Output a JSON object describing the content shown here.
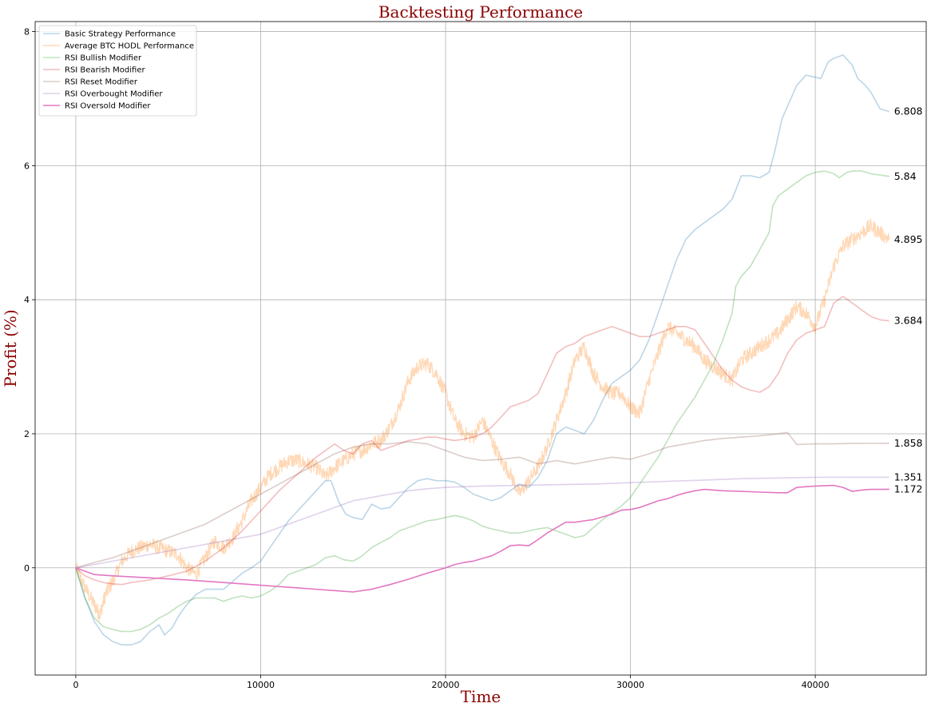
{
  "chart_data": {
    "type": "line",
    "title": "Backtesting Performance",
    "xlabel": "Time",
    "ylabel": "Profit (%)",
    "xlim": [
      -2200,
      46000
    ],
    "ylim": [
      -1.6,
      8.15
    ],
    "xticks": [
      0,
      10000,
      20000,
      30000,
      40000
    ],
    "yticks": [
      0,
      2,
      4,
      6,
      8
    ],
    "grid": true,
    "legend_position": "top-left",
    "series": [
      {
        "name": "Basic Strategy Performance",
        "color": "#1f77b4",
        "opacity": 0.3,
        "noise": 0,
        "x": [
          0,
          500,
          1000,
          1500,
          2000,
          2500,
          3000,
          3500,
          4000,
          4500,
          4800,
          5200,
          5600,
          6000,
          6500,
          7000,
          7500,
          8000,
          8500,
          9000,
          9500,
          10000,
          10500,
          11000,
          11500,
          12000,
          12500,
          13000,
          13500,
          13800,
          14200,
          14600,
          15000,
          15500,
          16000,
          16500,
          17000,
          17500,
          18000,
          18500,
          19000,
          19500,
          20000,
          20500,
          21000,
          21500,
          22000,
          22500,
          23000,
          23500,
          24000,
          24500,
          25000,
          25500,
          26000,
          26500,
          27000,
          27500,
          28000,
          28500,
          29000,
          29500,
          30000,
          30500,
          31000,
          31500,
          32000,
          32500,
          33000,
          33500,
          34000,
          34500,
          35000,
          35500,
          36000,
          36500,
          37000,
          37500,
          37800,
          38200,
          38600,
          39000,
          39500,
          40000,
          40300,
          40700,
          41000,
          41500,
          42000,
          42300,
          42700,
          43000,
          43500,
          44000
        ],
        "y": [
          0,
          -0.45,
          -0.8,
          -1.0,
          -1.1,
          -1.15,
          -1.15,
          -1.1,
          -0.95,
          -0.85,
          -1.0,
          -0.9,
          -0.7,
          -0.55,
          -0.4,
          -0.32,
          -0.32,
          -0.32,
          -0.2,
          -0.08,
          0.0,
          0.1,
          0.3,
          0.5,
          0.7,
          0.85,
          1.0,
          1.15,
          1.3,
          1.3,
          1.0,
          0.8,
          0.75,
          0.72,
          0.95,
          0.88,
          0.9,
          1.05,
          1.2,
          1.3,
          1.33,
          1.3,
          1.3,
          1.28,
          1.2,
          1.1,
          1.05,
          1.0,
          1.05,
          1.15,
          1.25,
          1.2,
          1.35,
          1.6,
          2.0,
          2.1,
          2.05,
          2.0,
          2.2,
          2.5,
          2.75,
          2.85,
          2.95,
          3.1,
          3.4,
          3.8,
          4.2,
          4.6,
          4.9,
          5.05,
          5.15,
          5.25,
          5.35,
          5.5,
          5.85,
          5.85,
          5.82,
          5.9,
          6.2,
          6.7,
          6.95,
          7.2,
          7.35,
          7.32,
          7.3,
          7.55,
          7.6,
          7.65,
          7.5,
          7.3,
          7.2,
          7.1,
          6.85,
          6.808
        ]
      },
      {
        "name": "Average BTC HODL Performance",
        "color": "#ff7f0e",
        "opacity": 0.3,
        "noise": 1,
        "x": [
          0,
          500,
          1000,
          1300,
          1600,
          2000,
          2500,
          3000,
          3500,
          4000,
          4500,
          5000,
          5500,
          6000,
          6500,
          7000,
          7500,
          8000,
          8500,
          9000,
          9500,
          10000,
          10500,
          11000,
          11500,
          12000,
          12500,
          13000,
          13500,
          14000,
          14500,
          15000,
          15500,
          16000,
          16500,
          17000,
          17500,
          18000,
          18500,
          19000,
          19500,
          20000,
          20500,
          21000,
          21500,
          22000,
          22500,
          23000,
          23500,
          24000,
          24500,
          25000,
          25500,
          26000,
          26500,
          27000,
          27500,
          28000,
          28500,
          29000,
          29500,
          30000,
          30500,
          31000,
          31500,
          32000,
          32500,
          33000,
          33500,
          34000,
          34500,
          35000,
          35500,
          36000,
          36500,
          37000,
          37500,
          38000,
          38500,
          39000,
          39500,
          40000,
          40500,
          41000,
          41500,
          42000,
          42500,
          43000,
          43500,
          44000
        ],
        "y": [
          0,
          -0.3,
          -0.55,
          -0.7,
          -0.4,
          -0.2,
          0.1,
          0.25,
          0.3,
          0.35,
          0.3,
          0.25,
          0.2,
          0.0,
          -0.1,
          0.15,
          0.4,
          0.3,
          0.45,
          0.7,
          1.0,
          1.2,
          1.4,
          1.5,
          1.6,
          1.6,
          1.55,
          1.5,
          1.35,
          1.5,
          1.6,
          1.7,
          1.75,
          1.85,
          1.9,
          2.1,
          2.4,
          2.8,
          3.0,
          3.05,
          2.9,
          2.6,
          2.2,
          2.0,
          1.95,
          2.2,
          1.9,
          1.6,
          1.4,
          1.1,
          1.3,
          1.5,
          1.8,
          2.2,
          2.6,
          3.1,
          3.3,
          2.9,
          2.7,
          2.6,
          2.6,
          2.4,
          2.3,
          2.8,
          3.2,
          3.6,
          3.5,
          3.4,
          3.3,
          3.1,
          3.0,
          2.9,
          2.8,
          3.1,
          3.2,
          3.3,
          3.4,
          3.5,
          3.7,
          3.9,
          3.8,
          3.6,
          4.0,
          4.5,
          4.8,
          4.9,
          5.0,
          5.1,
          5.0,
          4.895
        ]
      },
      {
        "name": "RSI Bullish Modifier",
        "color": "#2ca02c",
        "opacity": 0.3,
        "noise": 0,
        "x": [
          0,
          500,
          1000,
          1500,
          2000,
          2500,
          3000,
          3500,
          4000,
          4500,
          5000,
          5500,
          6000,
          6500,
          7000,
          7500,
          8000,
          8500,
          9000,
          9500,
          10000,
          10500,
          11000,
          11500,
          12000,
          12500,
          13000,
          13500,
          14000,
          14500,
          15000,
          15500,
          16000,
          16500,
          17000,
          17500,
          18000,
          18500,
          19000,
          19500,
          20000,
          20500,
          21000,
          21500,
          22000,
          22500,
          23000,
          23500,
          24000,
          24500,
          25000,
          25500,
          26000,
          26500,
          27000,
          27500,
          28000,
          28500,
          29000,
          29500,
          30000,
          30500,
          31000,
          31500,
          32000,
          32500,
          33000,
          33500,
          34000,
          34500,
          35000,
          35500,
          35700,
          36000,
          36500,
          37000,
          37500,
          37700,
          38000,
          38500,
          39000,
          39500,
          40000,
          40500,
          41000,
          41300,
          41700,
          42000,
          42500,
          43000,
          43500,
          44000
        ],
        "y": [
          0,
          -0.45,
          -0.75,
          -0.88,
          -0.92,
          -0.95,
          -0.95,
          -0.92,
          -0.85,
          -0.75,
          -0.68,
          -0.58,
          -0.5,
          -0.45,
          -0.45,
          -0.45,
          -0.5,
          -0.45,
          -0.42,
          -0.45,
          -0.42,
          -0.35,
          -0.25,
          -0.1,
          -0.05,
          0.0,
          0.05,
          0.15,
          0.18,
          0.12,
          0.1,
          0.18,
          0.3,
          0.38,
          0.45,
          0.55,
          0.6,
          0.65,
          0.7,
          0.72,
          0.75,
          0.78,
          0.75,
          0.7,
          0.62,
          0.58,
          0.55,
          0.52,
          0.52,
          0.55,
          0.58,
          0.6,
          0.55,
          0.5,
          0.45,
          0.48,
          0.6,
          0.72,
          0.82,
          0.92,
          1.05,
          1.25,
          1.45,
          1.65,
          1.9,
          2.15,
          2.35,
          2.55,
          2.8,
          3.05,
          3.4,
          3.8,
          4.2,
          4.35,
          4.5,
          4.75,
          5.0,
          5.4,
          5.55,
          5.65,
          5.75,
          5.85,
          5.9,
          5.92,
          5.88,
          5.82,
          5.9,
          5.92,
          5.92,
          5.88,
          5.86,
          5.84
        ]
      },
      {
        "name": "RSI Bearish Modifier",
        "color": "#d62728",
        "opacity": 0.3,
        "noise": 0,
        "x": [
          0,
          500,
          1000,
          1500,
          2000,
          2500,
          3000,
          4000,
          5000,
          6000,
          7000,
          8000,
          9000,
          10000,
          11000,
          12000,
          13000,
          14000,
          14500,
          15000,
          15500,
          16000,
          16500,
          17000,
          17500,
          18000,
          18500,
          19000,
          19500,
          20000,
          20500,
          21000,
          21500,
          22000,
          22500,
          23000,
          23500,
          24000,
          24500,
          25000,
          25500,
          26000,
          26500,
          27000,
          27500,
          28000,
          28500,
          29000,
          29500,
          30000,
          30500,
          31000,
          31500,
          32000,
          32500,
          33000,
          33500,
          34000,
          34500,
          35000,
          35500,
          36000,
          36500,
          37000,
          37500,
          38000,
          38500,
          39000,
          39500,
          40000,
          40500,
          41000,
          41500,
          42000,
          42500,
          43000,
          43500,
          44000
        ],
        "y": [
          0,
          -0.12,
          -0.18,
          -0.22,
          -0.24,
          -0.25,
          -0.22,
          -0.18,
          -0.12,
          -0.05,
          0.1,
          0.3,
          0.55,
          0.85,
          1.15,
          1.4,
          1.65,
          1.85,
          1.75,
          1.7,
          1.85,
          1.9,
          1.75,
          1.8,
          1.85,
          1.9,
          1.92,
          1.95,
          1.95,
          1.92,
          1.9,
          1.92,
          1.95,
          2.0,
          2.1,
          2.25,
          2.4,
          2.45,
          2.5,
          2.6,
          2.9,
          3.2,
          3.3,
          3.35,
          3.45,
          3.5,
          3.55,
          3.6,
          3.55,
          3.5,
          3.45,
          3.45,
          3.5,
          3.55,
          3.6,
          3.6,
          3.55,
          3.35,
          3.15,
          2.95,
          2.8,
          2.7,
          2.65,
          2.62,
          2.7,
          2.9,
          3.2,
          3.4,
          3.5,
          3.55,
          3.6,
          3.95,
          4.05,
          3.95,
          3.85,
          3.75,
          3.7,
          3.684
        ]
      },
      {
        "name": "RSI Reset Modifier",
        "color": "#8c564b",
        "opacity": 0.3,
        "noise": 0,
        "x": [
          0,
          1000,
          2000,
          3000,
          4000,
          5000,
          6000,
          7000,
          8000,
          9000,
          10000,
          11000,
          12000,
          13000,
          14000,
          15000,
          16000,
          17000,
          18000,
          19000,
          20000,
          21000,
          22000,
          23000,
          24000,
          25000,
          26000,
          27000,
          28000,
          29000,
          30000,
          31000,
          32000,
          33000,
          34000,
          35000,
          36000,
          37000,
          38000,
          38500,
          39000,
          40000,
          41000,
          42000,
          43000,
          44000
        ],
        "y": [
          0,
          0.08,
          0.15,
          0.25,
          0.35,
          0.45,
          0.55,
          0.65,
          0.8,
          0.95,
          1.1,
          1.25,
          1.4,
          1.55,
          1.7,
          1.8,
          1.85,
          1.85,
          1.88,
          1.85,
          1.75,
          1.65,
          1.6,
          1.62,
          1.65,
          1.55,
          1.6,
          1.55,
          1.6,
          1.65,
          1.62,
          1.7,
          1.8,
          1.85,
          1.9,
          1.93,
          1.95,
          1.97,
          2.0,
          2.02,
          1.84,
          1.85,
          1.85,
          1.855,
          1.857,
          1.858
        ]
      },
      {
        "name": "RSI Overbought Modifier",
        "color": "#9467bd",
        "opacity": 0.3,
        "noise": 0,
        "x": [
          0,
          2000,
          4000,
          6000,
          8000,
          10000,
          12000,
          14000,
          15000,
          16000,
          17000,
          18000,
          19000,
          20000,
          22000,
          24000,
          26000,
          28000,
          30000,
          32000,
          34000,
          36000,
          38000,
          40000,
          42000,
          44000
        ],
        "y": [
          0,
          0.1,
          0.2,
          0.3,
          0.4,
          0.5,
          0.7,
          0.9,
          1.0,
          1.05,
          1.1,
          1.15,
          1.18,
          1.2,
          1.22,
          1.23,
          1.24,
          1.25,
          1.27,
          1.29,
          1.31,
          1.33,
          1.34,
          1.35,
          1.351,
          1.351
        ]
      },
      {
        "name": "RSI Oversold Modifier",
        "color": "#e377c2",
        "opacity": 1,
        "noise": 0,
        "x": [
          0,
          500,
          1000,
          2000,
          4000,
          6000,
          8000,
          10000,
          12000,
          14000,
          15000,
          16000,
          17000,
          18000,
          19000,
          20000,
          20500,
          21000,
          21500,
          22000,
          22500,
          23000,
          23500,
          24000,
          24500,
          25000,
          25500,
          26000,
          26500,
          27000,
          27500,
          28000,
          28500,
          29000,
          29500,
          30000,
          30500,
          31000,
          31500,
          32000,
          32500,
          33000,
          33500,
          34000,
          34500,
          35000,
          36000,
          37000,
          38000,
          38500,
          39000,
          40000,
          41000,
          41500,
          42000,
          42500,
          43000,
          43500,
          44000
        ],
        "y": [
          0,
          -0.05,
          -0.1,
          -0.12,
          -0.15,
          -0.18,
          -0.22,
          -0.26,
          -0.3,
          -0.34,
          -0.36,
          -0.32,
          -0.25,
          -0.17,
          -0.08,
          0.0,
          0.05,
          0.08,
          0.1,
          0.14,
          0.18,
          0.25,
          0.33,
          0.34,
          0.33,
          0.42,
          0.52,
          0.6,
          0.68,
          0.68,
          0.7,
          0.72,
          0.76,
          0.8,
          0.86,
          0.87,
          0.9,
          0.95,
          1.0,
          1.03,
          1.08,
          1.12,
          1.15,
          1.17,
          1.16,
          1.15,
          1.14,
          1.13,
          1.12,
          1.12,
          1.2,
          1.22,
          1.23,
          1.2,
          1.14,
          1.16,
          1.17,
          1.17,
          1.172
        ]
      }
    ],
    "end_labels": [
      {
        "text": "6.808",
        "value": 6.808
      },
      {
        "text": "5.84",
        "value": 5.84
      },
      {
        "text": "4.895",
        "value": 4.895
      },
      {
        "text": "3.684",
        "value": 3.684
      },
      {
        "text": "1.858",
        "value": 1.858
      },
      {
        "text": "1.351",
        "value": 1.351
      },
      {
        "text": "1.172",
        "value": 1.172
      }
    ]
  }
}
